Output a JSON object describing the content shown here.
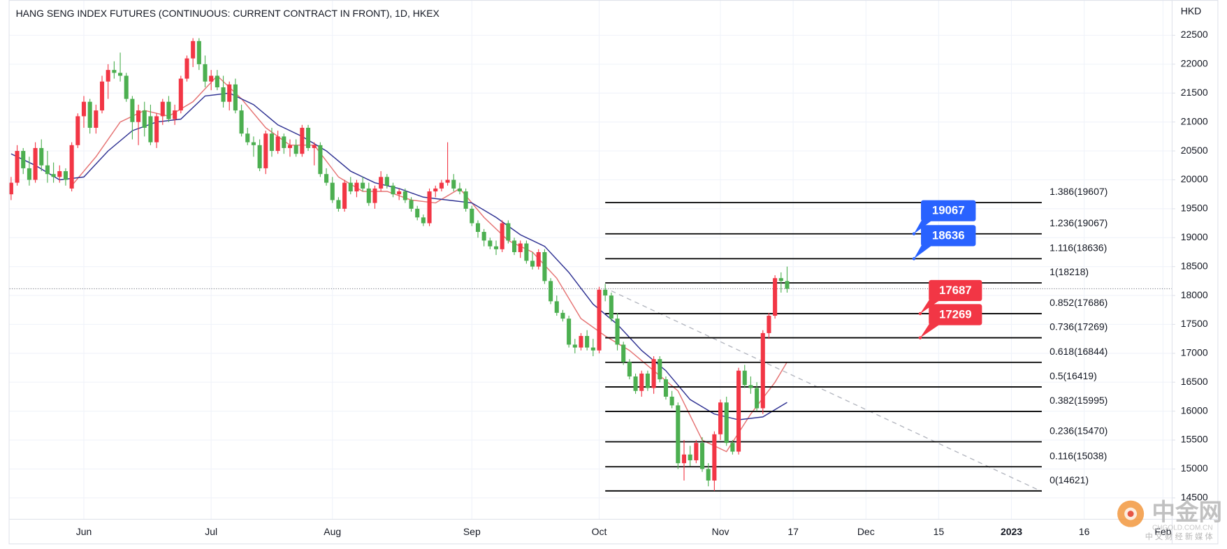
{
  "chart_data": {
    "type": "candlestick",
    "title": "HANG SENG INDEX FUTURES (CONTINUOUS: CURRENT CONTRACT IN FRONT), 1D, HKEX",
    "y_axis_label": "HKD",
    "up_color": "#f23645",
    "down_color": "#4caf50",
    "open": [
      19750,
      19950,
      20500,
      20200,
      20000,
      20550,
      20250,
      20100,
      20050,
      20150,
      19850,
      20600,
      21100,
      21350,
      20900,
      21200,
      21700,
      21900,
      21850,
      21800,
      21400,
      21000,
      21200,
      21100,
      20650,
      21100,
      21350,
      21050,
      21200,
      21750,
      22100,
      22400,
      22000,
      21700,
      21800,
      21600,
      21350,
      21650,
      21200,
      20800,
      20650,
      20600,
      20200,
      20800,
      20500,
      20750,
      20550,
      20600,
      20450,
      20900,
      20550,
      20600,
      20100,
      19950,
      19650,
      19500,
      19950,
      19800,
      19950,
      19850,
      19600,
      19850,
      20050,
      19900,
      19750,
      19800,
      19650,
      19500,
      19350,
      19250,
      19800,
      19850,
      19950,
      20000,
      19850,
      19800,
      19500,
      19250,
      19100,
      18950,
      18850,
      18800,
      19250,
      18950,
      18750,
      18900,
      18600,
      18500,
      18750,
      18250,
      17900,
      17700,
      17600,
      17150,
      17100,
      17300,
      17100,
      17050,
      18100,
      18000,
      17600,
      17150,
      16850,
      16600,
      16350,
      16650,
      16400,
      16900,
      16550,
      16250,
      16100,
      15100,
      15250,
      15150,
      15450,
      15000,
      14800,
      15600,
      16150,
      15450,
      15300,
      16700,
      16450,
      16400,
      16050,
      17350,
      17650,
      18300,
      18250
    ],
    "high": [
      20050,
      20600,
      20550,
      20400,
      20650,
      20700,
      20500,
      20300,
      20250,
      20200,
      20650,
      21150,
      21450,
      21400,
      21300,
      21800,
      22000,
      22050,
      22200,
      21850,
      21450,
      21300,
      21350,
      21300,
      21150,
      21400,
      21450,
      21300,
      21800,
      22150,
      22450,
      22450,
      22150,
      21900,
      21900,
      21800,
      21700,
      21750,
      21300,
      20900,
      20750,
      20700,
      20850,
      20900,
      20850,
      20800,
      20700,
      20700,
      20950,
      20950,
      20650,
      20650,
      20200,
      20050,
      19700,
      20000,
      20050,
      20000,
      20050,
      19950,
      19900,
      20150,
      20100,
      19950,
      19850,
      19850,
      19700,
      19550,
      19400,
      19850,
      19900,
      20000,
      20650,
      20100,
      19950,
      19850,
      19550,
      19300,
      19150,
      19000,
      18950,
      19300,
      19300,
      19000,
      18950,
      18950,
      18750,
      18800,
      18800,
      18300,
      18000,
      17750,
      17650,
      17250,
      17350,
      17400,
      17250,
      18150,
      18200,
      18050,
      17700,
      17200,
      16900,
      16650,
      16700,
      16700,
      16950,
      16950,
      16600,
      16350,
      16150,
      15500,
      15400,
      15500,
      15550,
      15100,
      15650,
      16200,
      16250,
      15500,
      16750,
      16800,
      16600,
      16500,
      17400,
      17700,
      18350,
      18400,
      18500
    ],
    "low": [
      19650,
      19900,
      20100,
      19900,
      19950,
      20150,
      19950,
      19950,
      19950,
      19900,
      19800,
      20550,
      20900,
      20800,
      20800,
      21150,
      21400,
      21750,
      21700,
      21350,
      20700,
      20600,
      20750,
      20600,
      20550,
      20950,
      21000,
      20950,
      21150,
      21700,
      21950,
      21900,
      21600,
      21550,
      21550,
      21250,
      21200,
      21150,
      20750,
      20600,
      20400,
      20150,
      20100,
      20400,
      20450,
      20450,
      20400,
      20400,
      20400,
      20500,
      20250,
      20050,
      19900,
      19600,
      19450,
      19450,
      19750,
      19700,
      19800,
      19550,
      19500,
      19800,
      19850,
      19700,
      19650,
      19600,
      19450,
      19300,
      19200,
      19200,
      19700,
      19800,
      19900,
      19800,
      19750,
      19450,
      19200,
      19000,
      18850,
      18800,
      18700,
      18750,
      18900,
      18700,
      18650,
      18550,
      18450,
      18450,
      18200,
      17850,
      17650,
      17550,
      17100,
      17000,
      17050,
      17050,
      16950,
      17000,
      17900,
      17550,
      17050,
      16800,
      16550,
      16300,
      16250,
      16350,
      16300,
      16500,
      16200,
      16050,
      15000,
      14800,
      15050,
      15100,
      14950,
      14700,
      14621,
      15500,
      15400,
      15250,
      15250,
      16400,
      16300,
      16000,
      15950,
      17250,
      17600,
      18050,
      18050
    ],
    "close": [
      19950,
      20500,
      20200,
      20000,
      20550,
      20250,
      20100,
      20050,
      20150,
      20000,
      20600,
      21100,
      21350,
      20900,
      21200,
      21700,
      21900,
      21850,
      21800,
      21400,
      21000,
      21200,
      20900,
      20650,
      21100,
      21350,
      21050,
      21200,
      21750,
      22100,
      22400,
      22000,
      21700,
      21800,
      21600,
      21350,
      21650,
      21200,
      20800,
      20650,
      20600,
      20200,
      20800,
      20500,
      20750,
      20550,
      20600,
      20450,
      20900,
      20550,
      20600,
      20100,
      19950,
      19650,
      19500,
      19950,
      19800,
      19950,
      19850,
      19600,
      19850,
      20050,
      19900,
      19750,
      19800,
      19650,
      19500,
      19350,
      19250,
      19800,
      19850,
      19950,
      20000,
      19850,
      19800,
      19500,
      19250,
      19100,
      18950,
      18850,
      18800,
      19250,
      18950,
      18750,
      18900,
      18600,
      18500,
      18750,
      18250,
      17900,
      17700,
      17600,
      17150,
      17100,
      17300,
      17100,
      17050,
      18100,
      18000,
      17600,
      17150,
      16850,
      16600,
      16350,
      16650,
      16400,
      16900,
      16550,
      16250,
      16100,
      15100,
      15250,
      15150,
      15450,
      15000,
      14800,
      15600,
      16150,
      15450,
      15300,
      16700,
      16450,
      16400,
      16050,
      17350,
      17650,
      18300,
      18250,
      18116
    ],
    "overlays": [
      {
        "type": "line",
        "color": "#e57373",
        "x": [
          10,
          14,
          18,
          22,
          26,
          30,
          34,
          38,
          42,
          46,
          50,
          54,
          58,
          62,
          66,
          70,
          74,
          78,
          82,
          86,
          90,
          94,
          98,
          102,
          106,
          110,
          114,
          118,
          122,
          126,
          128
        ],
        "values": [
          19900,
          20400,
          21000,
          21200,
          21100,
          21350,
          21800,
          21400,
          20900,
          20600,
          20600,
          20050,
          19800,
          19800,
          19650,
          19600,
          19850,
          19350,
          18950,
          18750,
          18300,
          17600,
          17300,
          17050,
          16700,
          16350,
          15500,
          15300,
          15950,
          16500,
          16850
        ]
      },
      {
        "type": "line",
        "color": "#2e3192",
        "x": [
          0,
          4,
          8,
          12,
          16,
          20,
          24,
          28,
          32,
          36,
          40,
          44,
          48,
          52,
          56,
          60,
          64,
          68,
          72,
          76,
          80,
          84,
          88,
          92,
          96,
          100,
          104,
          108,
          112,
          116,
          120,
          124,
          128
        ],
        "values": [
          20450,
          20250,
          20000,
          20050,
          20500,
          20850,
          21000,
          21050,
          21450,
          21500,
          21300,
          20950,
          20750,
          20500,
          20150,
          19950,
          19850,
          19700,
          19650,
          19600,
          19350,
          19050,
          18850,
          18400,
          17850,
          17500,
          17050,
          16700,
          16200,
          15950,
          15850,
          15900,
          16150
        ]
      }
    ],
    "trendline": {
      "x": [
        99,
        170
      ],
      "values": [
        18080,
        14610
      ],
      "color": "#b2b5be"
    },
    "fibonacci": {
      "x": [
        98,
        170
      ],
      "color": "#000000",
      "levels": [
        {
          "value": 19607,
          "label": "1.386(19607)"
        },
        {
          "value": 19067,
          "label": "1.236(19067)"
        },
        {
          "value": 18636,
          "label": "1.116(18636)"
        },
        {
          "value": 18218,
          "label": "1(18218)"
        },
        {
          "value": 17686,
          "label": "0.852(17686)"
        },
        {
          "value": 17269,
          "label": "0.736(17269)"
        },
        {
          "value": 16844,
          "label": "0.618(16844)"
        },
        {
          "value": 16419,
          "label": "0.5(16419)"
        },
        {
          "value": 15995,
          "label": "0.382(15995)"
        },
        {
          "value": 15470,
          "label": "0.236(15470)"
        },
        {
          "value": 15038,
          "label": "0.116(15038)"
        },
        {
          "value": 14621,
          "label": "0(14621)"
        }
      ]
    },
    "callouts": [
      {
        "value": 19067,
        "color": "#2962ff"
      },
      {
        "value": 18636,
        "color": "#2962ff"
      },
      {
        "value": 17687,
        "color": "#f23645"
      },
      {
        "value": 17269,
        "color": "#f23645"
      }
    ],
    "xlim": [
      -0.26,
      191.5
    ],
    "xticks": [
      {
        "value": 12,
        "label": "Jun"
      },
      {
        "value": 33,
        "label": "Jul"
      },
      {
        "value": 53,
        "label": "Aug"
      },
      {
        "value": 76,
        "label": "Sep"
      },
      {
        "value": 97,
        "label": "Oct"
      },
      {
        "value": 117,
        "label": "Nov"
      },
      {
        "value": 129,
        "label": "17"
      },
      {
        "value": 141,
        "label": "Dec"
      },
      {
        "value": 153,
        "label": "15"
      },
      {
        "value": 165,
        "label": "2023"
      },
      {
        "value": 177,
        "label": "16"
      },
      {
        "value": 190,
        "label": "Feb"
      }
    ],
    "ylim": [
      14130,
      23110
    ],
    "yticks": [
      14500,
      15000,
      15500,
      16000,
      16500,
      17000,
      17500,
      18000,
      18500,
      19000,
      19500,
      20000,
      20500,
      21000,
      21500,
      22000,
      22500
    ],
    "grid": true,
    "watermark": {
      "text": "中金网",
      "site": "CHGOLD.COM.CN",
      "tagline": "中 文 财 经 新 媒 体"
    }
  }
}
